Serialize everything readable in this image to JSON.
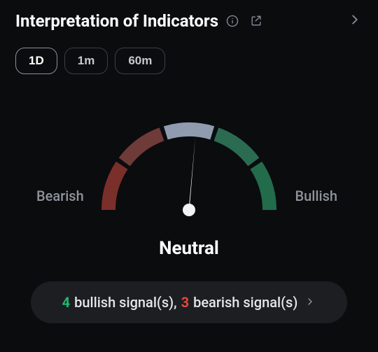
{
  "header": {
    "title": "Interpretation of Indicators"
  },
  "tabs": [
    {
      "label": "1D",
      "active": true
    },
    {
      "label": "1m",
      "active": false
    },
    {
      "label": "60m",
      "active": false
    }
  ],
  "gauge": {
    "type": "gauge",
    "left_label": "Bearish",
    "right_label": "Bullish",
    "status_label": "Neutral",
    "needle_angle_deg": 5,
    "needle_color": "#f2f3f4",
    "pivot_color": "#f2f3f4",
    "background_color": "#0b0c0e",
    "label_color": "#8e949b",
    "segments": [
      {
        "name": "strong-bearish",
        "color": "#7a2f2a"
      },
      {
        "name": "bearish",
        "color": "#6e3b39"
      },
      {
        "name": "neutral",
        "color": "#8f9baf"
      },
      {
        "name": "bullish",
        "color": "#2b6b52"
      },
      {
        "name": "strong-bullish",
        "color": "#226c4c"
      }
    ],
    "arc_stroke_width": 20,
    "gap_deg": 3
  },
  "summary": {
    "bullish_count": "4",
    "bullish_text": "bullish signal(s),",
    "bearish_count": "3",
    "bearish_text": "bearish signal(s)",
    "bullish_color": "#1fb76b",
    "bearish_color": "#e0493f",
    "pill_bg": "#1c1e22"
  }
}
